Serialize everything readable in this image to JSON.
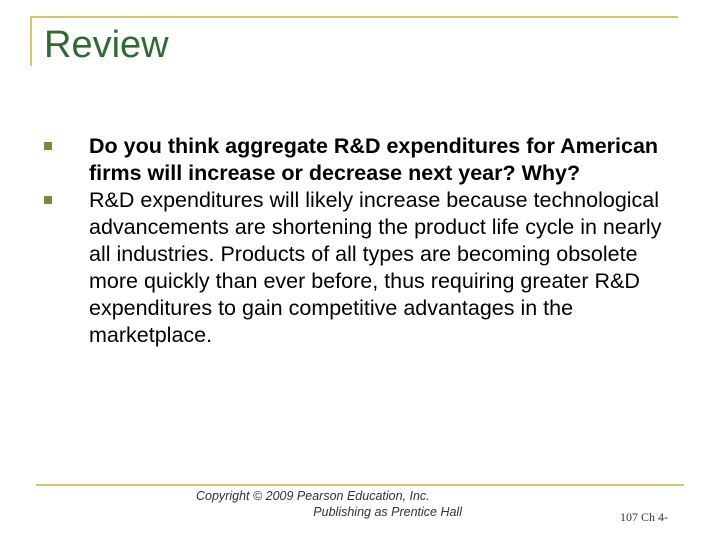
{
  "slide": {
    "title": "Review",
    "bullets": [
      {
        "text": "Do you think aggregate R&D expenditures for American firms will increase or decrease next year?  Why?",
        "bold": true
      },
      {
        "text": "R&D expenditures will likely increase because technological advancements are shortening the product life cycle in nearly all industries. Products of all types are becoming obsolete more quickly than ever before, thus requiring greater R&D expenditures to gain competitive advantages in the marketplace.",
        "bold": false
      }
    ]
  },
  "footer": {
    "copyright_line1": "Copyright © 2009 Pearson Education, Inc.",
    "copyright_line2": "Publishing as Prentice Hall",
    "slide_number": "107 Ch 4-"
  },
  "colors": {
    "title": "#2e6b34",
    "accent_lines": "#d8c46a",
    "bullet_marker": "#7a8c3a"
  }
}
